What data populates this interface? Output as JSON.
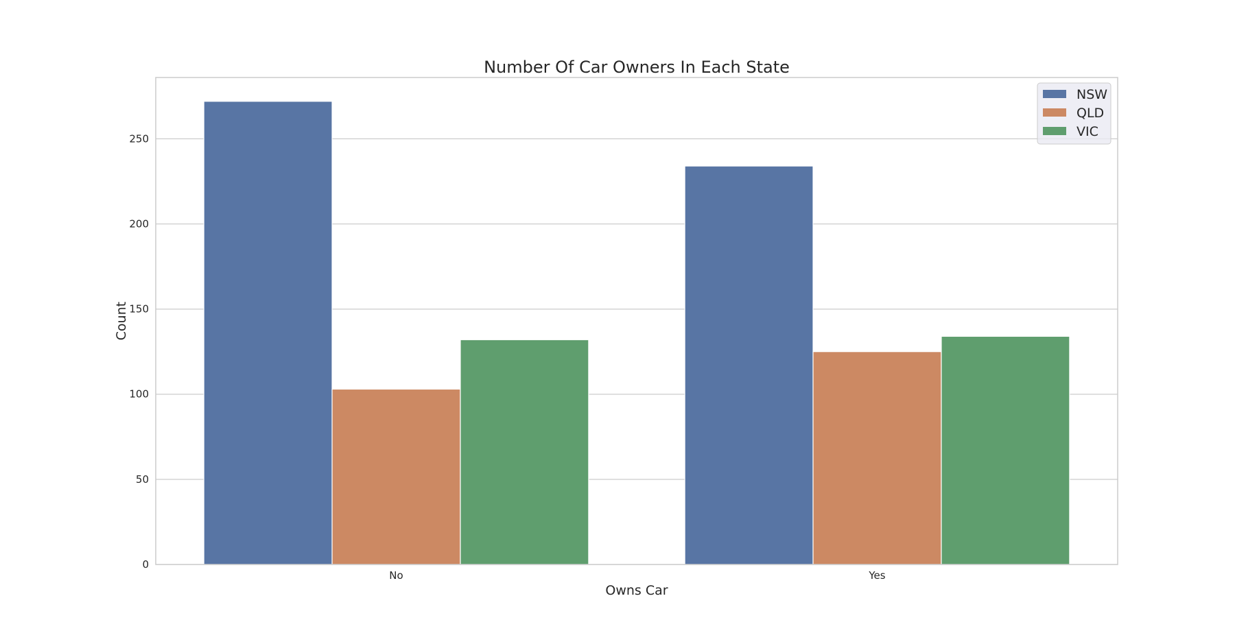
{
  "chart_data": {
    "type": "bar",
    "title": "Number Of Car Owners In Each State",
    "xlabel": "Owns Car",
    "ylabel": "Count",
    "categories": [
      "No",
      "Yes"
    ],
    "series": [
      {
        "name": "NSW",
        "color": "#5875a4",
        "values": [
          272,
          234
        ]
      },
      {
        "name": "QLD",
        "color": "#cc8963",
        "values": [
          103,
          125
        ]
      },
      {
        "name": "VIC",
        "color": "#5f9e6e",
        "values": [
          132,
          134
        ]
      }
    ],
    "ylim": [
      0,
      286
    ],
    "yticks": [
      0,
      50,
      100,
      150,
      200,
      250
    ],
    "grid": "horizontal",
    "legend_position": "top-right"
  }
}
